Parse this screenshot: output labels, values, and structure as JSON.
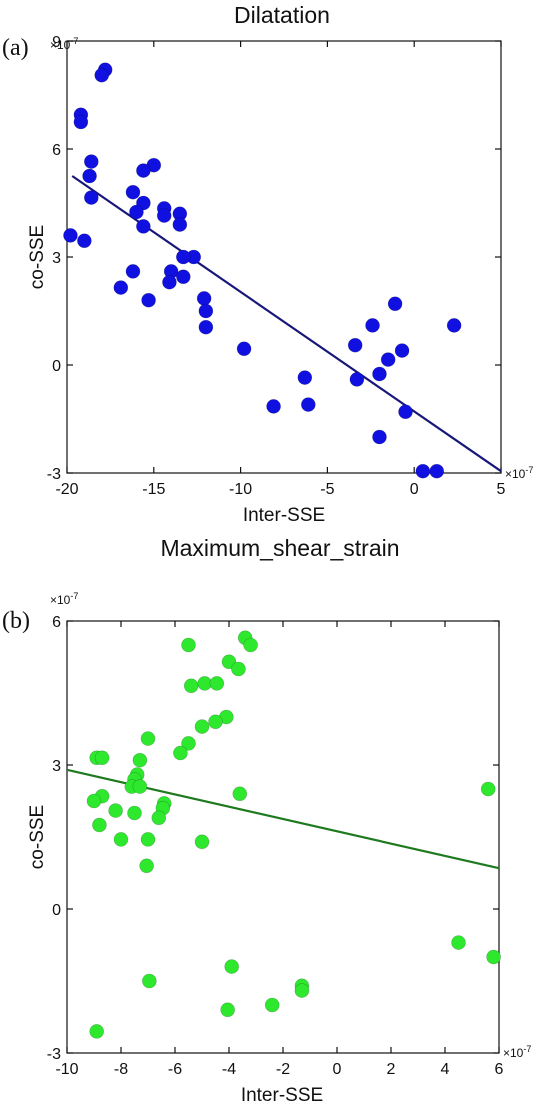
{
  "chart_data": [
    {
      "type": "scatter",
      "panel_label": "(a)",
      "title": "Dilatation",
      "xlabel": "Inter-SSE",
      "ylabel": "co-SSE",
      "x_exponent": "×10",
      "x_exponent_power": "-7",
      "y_exponent": "×10",
      "y_exponent_power": "-7",
      "xlim": [
        -20,
        5
      ],
      "ylim": [
        -3,
        9
      ],
      "xticks": [
        "-20",
        "-15",
        "-10",
        "-5",
        "0",
        "5"
      ],
      "yticks": [
        "-3",
        "0",
        "3",
        "6",
        "9"
      ],
      "grid": false,
      "point_color": "#1010e0",
      "line_color": "#17177a",
      "fit_line": {
        "x": [
          -19.7,
          5
        ],
        "y": [
          5.25,
          -2.95
        ]
      },
      "points": [
        {
          "x": -17.8,
          "y": 8.2
        },
        {
          "x": -18.0,
          "y": 8.05
        },
        {
          "x": -19.2,
          "y": 6.95
        },
        {
          "x": -19.2,
          "y": 6.75
        },
        {
          "x": -18.6,
          "y": 5.65
        },
        {
          "x": -18.7,
          "y": 5.25
        },
        {
          "x": -18.6,
          "y": 4.65
        },
        {
          "x": -19.8,
          "y": 3.6
        },
        {
          "x": -19.0,
          "y": 3.45
        },
        {
          "x": -15.0,
          "y": 5.55
        },
        {
          "x": -15.6,
          "y": 5.4
        },
        {
          "x": -16.2,
          "y": 4.8
        },
        {
          "x": -15.6,
          "y": 4.5
        },
        {
          "x": -14.4,
          "y": 4.35
        },
        {
          "x": -16.0,
          "y": 4.25
        },
        {
          "x": -14.4,
          "y": 4.15
        },
        {
          "x": -13.5,
          "y": 4.2
        },
        {
          "x": -13.5,
          "y": 3.9
        },
        {
          "x": -15.6,
          "y": 3.85
        },
        {
          "x": -12.7,
          "y": 3.0
        },
        {
          "x": -13.3,
          "y": 3.0
        },
        {
          "x": -16.2,
          "y": 2.6
        },
        {
          "x": -14.0,
          "y": 2.6
        },
        {
          "x": -13.3,
          "y": 2.45
        },
        {
          "x": -14.1,
          "y": 2.3
        },
        {
          "x": -16.9,
          "y": 2.15
        },
        {
          "x": -15.3,
          "y": 1.8
        },
        {
          "x": -12.1,
          "y": 1.85
        },
        {
          "x": -12.0,
          "y": 1.5
        },
        {
          "x": -12.0,
          "y": 1.05
        },
        {
          "x": -9.8,
          "y": 0.45
        },
        {
          "x": -6.3,
          "y": -0.35
        },
        {
          "x": -8.1,
          "y": -1.15
        },
        {
          "x": -6.1,
          "y": -1.1
        },
        {
          "x": -3.4,
          "y": 0.55
        },
        {
          "x": -3.3,
          "y": -0.4
        },
        {
          "x": -2.4,
          "y": 1.1
        },
        {
          "x": -2.0,
          "y": -0.25
        },
        {
          "x": -1.5,
          "y": 0.15
        },
        {
          "x": -1.1,
          "y": 1.7
        },
        {
          "x": -0.7,
          "y": 0.4
        },
        {
          "x": -0.5,
          "y": -1.3
        },
        {
          "x": -2.0,
          "y": -2.0
        },
        {
          "x": 0.5,
          "y": -2.95
        },
        {
          "x": 1.3,
          "y": -2.95
        },
        {
          "x": 2.3,
          "y": 1.1
        }
      ]
    },
    {
      "type": "scatter",
      "panel_label": "(b)",
      "title": "Maximum_shear_strain",
      "xlabel": "Inter-SSE",
      "ylabel": "co-SSE",
      "x_exponent": "×10",
      "x_exponent_power": "-7",
      "y_exponent": "×10",
      "y_exponent_power": "-7",
      "xlim": [
        -10,
        6
      ],
      "ylim": [
        -3,
        6
      ],
      "xticks": [
        "-10",
        "-8",
        "-6",
        "-4",
        "-2",
        "0",
        "2",
        "4",
        "6"
      ],
      "yticks": [
        "-3",
        "0",
        "3",
        "6"
      ],
      "grid": false,
      "point_color": "#2ee82e",
      "line_color": "#1f7a1f",
      "fit_line": {
        "x": [
          -10,
          6
        ],
        "y": [
          2.9,
          0.85
        ]
      },
      "points": [
        {
          "x": -5.5,
          "y": 5.5
        },
        {
          "x": -3.4,
          "y": 5.65
        },
        {
          "x": -3.2,
          "y": 5.5
        },
        {
          "x": -4.0,
          "y": 5.15
        },
        {
          "x": -3.65,
          "y": 5.0
        },
        {
          "x": -5.4,
          "y": 4.65
        },
        {
          "x": -4.9,
          "y": 4.7
        },
        {
          "x": -4.45,
          "y": 4.7
        },
        {
          "x": -4.1,
          "y": 4.0
        },
        {
          "x": -4.5,
          "y": 3.9
        },
        {
          "x": -5.0,
          "y": 3.8
        },
        {
          "x": -7.0,
          "y": 3.55
        },
        {
          "x": -5.5,
          "y": 3.45
        },
        {
          "x": -5.8,
          "y": 3.25
        },
        {
          "x": -8.9,
          "y": 3.15
        },
        {
          "x": -8.7,
          "y": 3.15
        },
        {
          "x": -7.3,
          "y": 3.1
        },
        {
          "x": -7.4,
          "y": 2.8
        },
        {
          "x": -7.5,
          "y": 2.7
        },
        {
          "x": -7.6,
          "y": 2.55
        },
        {
          "x": -7.3,
          "y": 2.55
        },
        {
          "x": -8.7,
          "y": 2.35
        },
        {
          "x": -9.0,
          "y": 2.25
        },
        {
          "x": -6.4,
          "y": 2.2
        },
        {
          "x": -6.45,
          "y": 2.1
        },
        {
          "x": -8.2,
          "y": 2.05
        },
        {
          "x": -7.5,
          "y": 2.0
        },
        {
          "x": -6.6,
          "y": 1.9
        },
        {
          "x": -8.8,
          "y": 1.75
        },
        {
          "x": -8.0,
          "y": 1.45
        },
        {
          "x": -7.0,
          "y": 1.45
        },
        {
          "x": -5.0,
          "y": 1.4
        },
        {
          "x": -7.05,
          "y": 0.9
        },
        {
          "x": -3.6,
          "y": 2.4
        },
        {
          "x": 5.6,
          "y": 2.5
        },
        {
          "x": 4.5,
          "y": -0.7
        },
        {
          "x": 5.8,
          "y": -1.0
        },
        {
          "x": -3.9,
          "y": -1.2
        },
        {
          "x": -6.95,
          "y": -1.5
        },
        {
          "x": -1.3,
          "y": -1.6
        },
        {
          "x": -1.3,
          "y": -1.7
        },
        {
          "x": -2.4,
          "y": -2.0
        },
        {
          "x": -4.05,
          "y": -2.1
        },
        {
          "x": -8.9,
          "y": -2.55
        }
      ]
    }
  ]
}
